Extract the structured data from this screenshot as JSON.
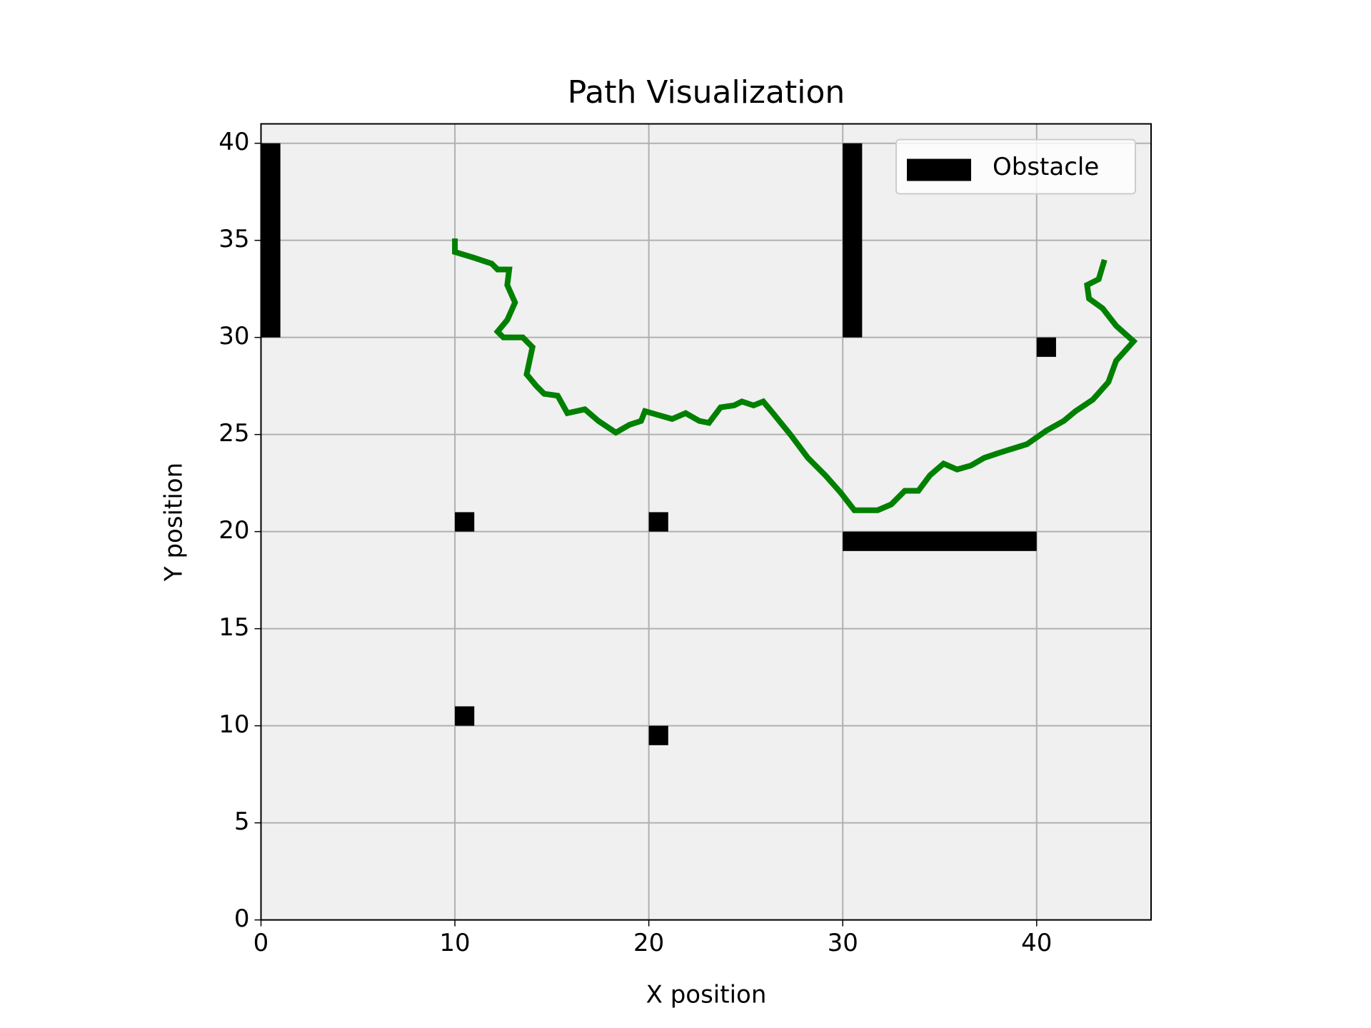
{
  "chart_data": {
    "type": "path",
    "title": "Path Visualization",
    "xlabel": "X position",
    "ylabel": "Y position",
    "xlim": [
      0,
      45.9
    ],
    "ylim": [
      0,
      41
    ],
    "xticks": [
      0,
      10,
      20,
      30,
      40
    ],
    "yticks": [
      0,
      5,
      10,
      15,
      20,
      25,
      30,
      35,
      40
    ],
    "grid": true,
    "background": "#f0f0f0",
    "legend": "upper right",
    "obstacles": {
      "name": "Obstacle",
      "color": "#000000",
      "rects": [
        {
          "x": 0,
          "y": 30,
          "width": 1,
          "height": 10
        },
        {
          "x": 30,
          "y": 30,
          "width": 1,
          "height": 10
        },
        {
          "x": 30,
          "y": 19,
          "width": 10,
          "height": 1
        },
        {
          "x": 10,
          "y": 20,
          "width": 1,
          "height": 1
        },
        {
          "x": 20,
          "y": 20,
          "width": 1,
          "height": 1
        },
        {
          "x": 10,
          "y": 10,
          "width": 1,
          "height": 1
        },
        {
          "x": 20,
          "y": 9,
          "width": 1,
          "height": 1
        },
        {
          "x": 40,
          "y": 29,
          "width": 1,
          "height": 1
        }
      ]
    },
    "path": {
      "color": "#008000",
      "x": [
        10.0,
        10.0,
        11.0,
        11.9,
        12.2,
        12.8,
        12.7,
        13.1,
        12.7,
        12.2,
        12.5,
        13.5,
        14.0,
        13.7,
        14.2,
        14.6,
        15.3,
        15.8,
        16.7,
        17.4,
        18.3,
        19.0,
        19.6,
        19.8,
        20.5,
        21.2,
        21.9,
        22.6,
        23.1,
        23.7,
        24.4,
        24.8,
        25.4,
        25.9,
        26.4,
        27.3,
        28.2,
        29.1,
        29.9,
        30.6,
        31.8,
        32.5,
        33.2,
        33.9,
        34.5,
        35.2,
        35.9,
        36.6,
        37.3,
        38.2,
        39.5,
        40.5,
        41.4,
        42.0,
        42.9,
        43.7,
        44.1,
        45.0,
        44.1,
        43.4,
        42.7,
        42.6,
        43.2,
        43.5
      ],
      "y": [
        35.1,
        34.4,
        34.1,
        33.8,
        33.5,
        33.5,
        32.7,
        31.8,
        30.9,
        30.3,
        30.0,
        30.0,
        29.5,
        28.1,
        27.5,
        27.1,
        27.0,
        26.1,
        26.3,
        25.7,
        25.1,
        25.5,
        25.7,
        26.2,
        26.0,
        25.8,
        26.1,
        25.7,
        25.6,
        26.4,
        26.5,
        26.7,
        26.5,
        26.7,
        26.1,
        25.0,
        23.8,
        22.9,
        22.0,
        21.1,
        21.1,
        21.4,
        22.1,
        22.1,
        22.9,
        23.5,
        23.2,
        23.4,
        23.8,
        24.1,
        24.5,
        25.2,
        25.7,
        26.2,
        26.8,
        27.7,
        28.8,
        29.8,
        30.6,
        31.5,
        32.0,
        32.7,
        33.0,
        34.0
      ]
    }
  }
}
